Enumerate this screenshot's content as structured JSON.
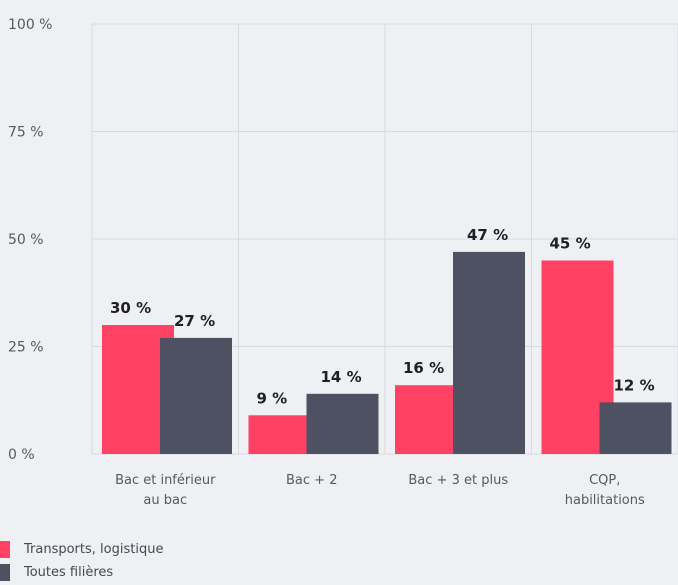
{
  "colors": {
    "series_1": "#ff4163",
    "series_2": "#4d5161",
    "grid": "#d7dadf"
  },
  "chart_data": {
    "type": "bar",
    "categories": [
      [
        "Bac et inférieur",
        "au bac"
      ],
      [
        "Bac + 2"
      ],
      [
        "Bac + 3 et plus"
      ],
      [
        "CQP,",
        "habilitations"
      ]
    ],
    "series": [
      {
        "name": "Transports, logistique",
        "values": [
          30,
          9,
          16,
          45
        ]
      },
      {
        "name": "Toutes filières",
        "values": [
          27,
          14,
          47,
          12
        ]
      }
    ],
    "data_labels": [
      [
        "30 %",
        "9 %",
        "16 %",
        "45 %"
      ],
      [
        "27 %",
        "14 %",
        "47 %",
        "12 %"
      ]
    ],
    "yticks": [
      0,
      25,
      50,
      75,
      100
    ],
    "ytick_labels": [
      "0 %",
      "25 %",
      "50 %",
      "75 %",
      "100 %"
    ],
    "ylim": [
      0,
      100
    ],
    "grid": true,
    "legend": "bottom-left"
  }
}
